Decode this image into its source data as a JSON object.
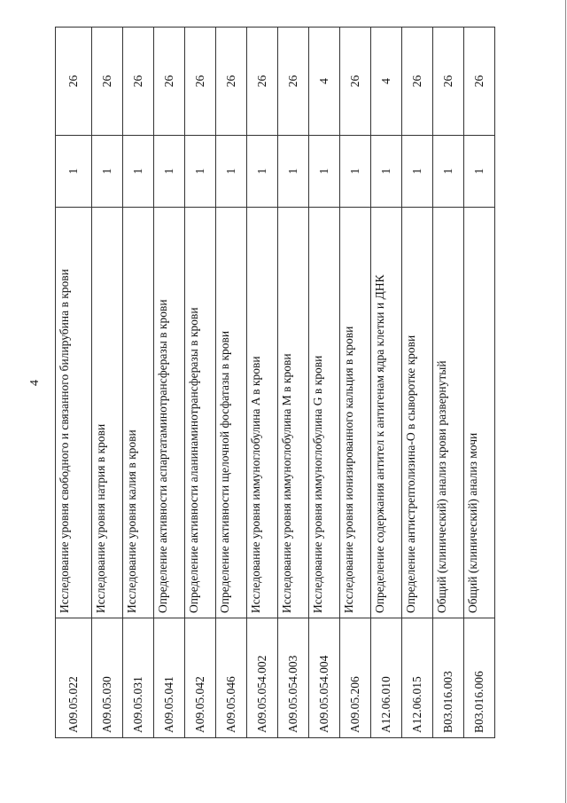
{
  "page_number": "4",
  "rows": [
    {
      "code": "A09.05.022",
      "name": "Исследование уровня свободного и связанного билирубина в крови",
      "qty": "1",
      "value": "26"
    },
    {
      "code": "A09.05.030",
      "name": "Исследование уровня натрия в крови",
      "qty": "1",
      "value": "26"
    },
    {
      "code": "A09.05.031",
      "name": "Исследование уровня калия в крови",
      "qty": "1",
      "value": "26"
    },
    {
      "code": "A09.05.041",
      "name": "Определение активности аспартатаминотрансферазы в крови",
      "qty": "1",
      "value": "26"
    },
    {
      "code": "A09.05.042",
      "name": "Определение активности аланинаминотрансферазы в крови",
      "qty": "1",
      "value": "26"
    },
    {
      "code": "A09.05.046",
      "name": "Определение активности щелочной фосфатазы в крови",
      "qty": "1",
      "value": "26"
    },
    {
      "code": "A09.05.054.002",
      "name": "Исследование уровня иммуноглобулина A в крови",
      "qty": "1",
      "value": "26"
    },
    {
      "code": "A09.05.054.003",
      "name": "Исследование уровня иммуноглобулина M в крови",
      "qty": "1",
      "value": "26"
    },
    {
      "code": "A09.05.054.004",
      "name": "Исследование уровня иммуноглобулина G в крови",
      "qty": "1",
      "value": "4"
    },
    {
      "code": "A09.05.206",
      "name": "Исследование уровня ионизированного кальция в крови",
      "qty": "1",
      "value": "26"
    },
    {
      "code": "A12.06.010",
      "name": "Определение содержания антител к антигенам ядра клетки и ДНК",
      "qty": "1",
      "value": "4"
    },
    {
      "code": "A12.06.015",
      "name": "Определение антистрептолизина-O в сыворотке крови",
      "qty": "1",
      "value": "26"
    },
    {
      "code": "B03.016.003",
      "name": "Общий (клинический) анализ крови развернутый",
      "qty": "1",
      "value": "26"
    },
    {
      "code": "B03.016.006",
      "name": "Общий (клинический) анализ мочи",
      "qty": "1",
      "value": "26"
    }
  ]
}
